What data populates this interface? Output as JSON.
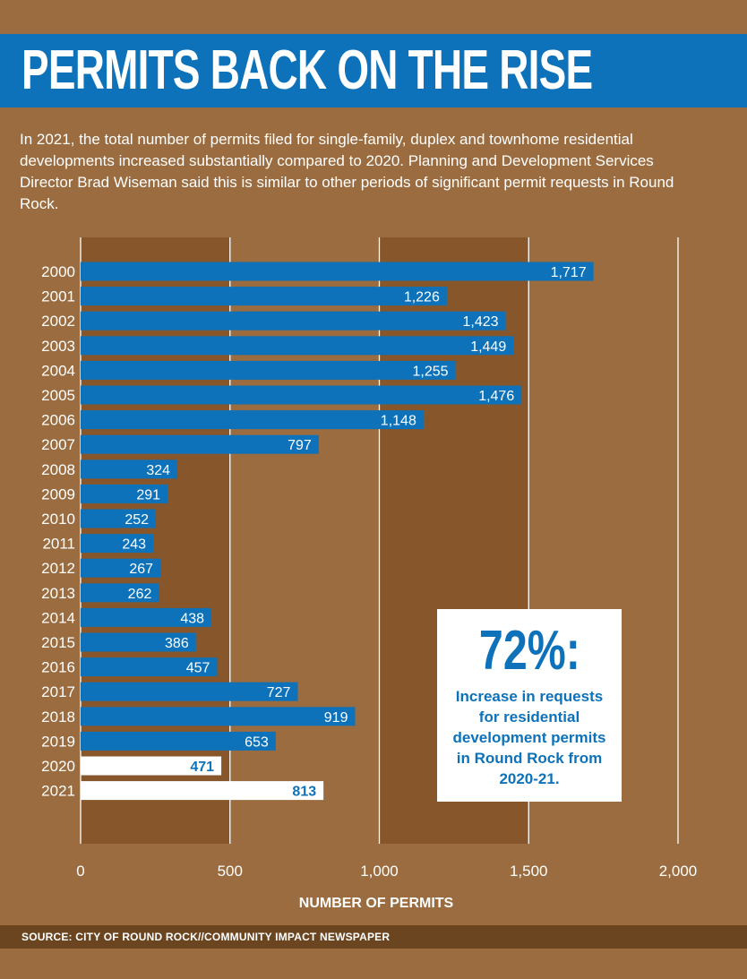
{
  "title": "PERMITS BACK ON THE RISE",
  "intro": "In 2021, the total number of permits filed for single-family, duplex and townhome residential developments increased substantially compared to 2020. Planning and Development Services Director Brad Wiseman said this is similar to other periods of significant permit requests in Round Rock.",
  "callout": {
    "value": "72%:",
    "text": "Increase in requests for residential development permits in Round Rock from 2020-21."
  },
  "source": "SOURCE: CITY OF ROUND ROCK//COMMUNITY IMPACT NEWSPAPER",
  "colors": {
    "background": "#9a6c3f",
    "band_dark": "#87562a",
    "bar": "#0d72b9",
    "highlight_bar": "#ffffff",
    "title_band": "#0d72b9"
  },
  "chart_data": {
    "type": "bar",
    "orientation": "horizontal",
    "categories": [
      "2000",
      "2001",
      "2002",
      "2003",
      "2004",
      "2005",
      "2006",
      "2007",
      "2008",
      "2009",
      "2010",
      "2011",
      "2012",
      "2013",
      "2014",
      "2015",
      "2016",
      "2017",
      "2018",
      "2019",
      "2020",
      "2021"
    ],
    "values": [
      1717,
      1226,
      1423,
      1449,
      1255,
      1476,
      1148,
      797,
      324,
      291,
      252,
      243,
      267,
      262,
      438,
      386,
      457,
      727,
      919,
      653,
      471,
      813
    ],
    "data_labels": [
      "1,717",
      "1,226",
      "1,423",
      "1,449",
      "1,255",
      "1,476",
      "1,148",
      "797",
      "324",
      "291",
      "252",
      "243",
      "267",
      "262",
      "438",
      "386",
      "457",
      "727",
      "919",
      "653",
      "471",
      "813"
    ],
    "highlighted_categories": [
      "2020",
      "2021"
    ],
    "xlabel": "NUMBER OF PERMITS",
    "xlim": [
      0,
      2000
    ],
    "xticks": [
      0,
      500,
      1000,
      1500,
      2000
    ],
    "xtick_labels": [
      "0",
      "500",
      "1,000",
      "1,500",
      "2,000"
    ],
    "grid": true
  }
}
